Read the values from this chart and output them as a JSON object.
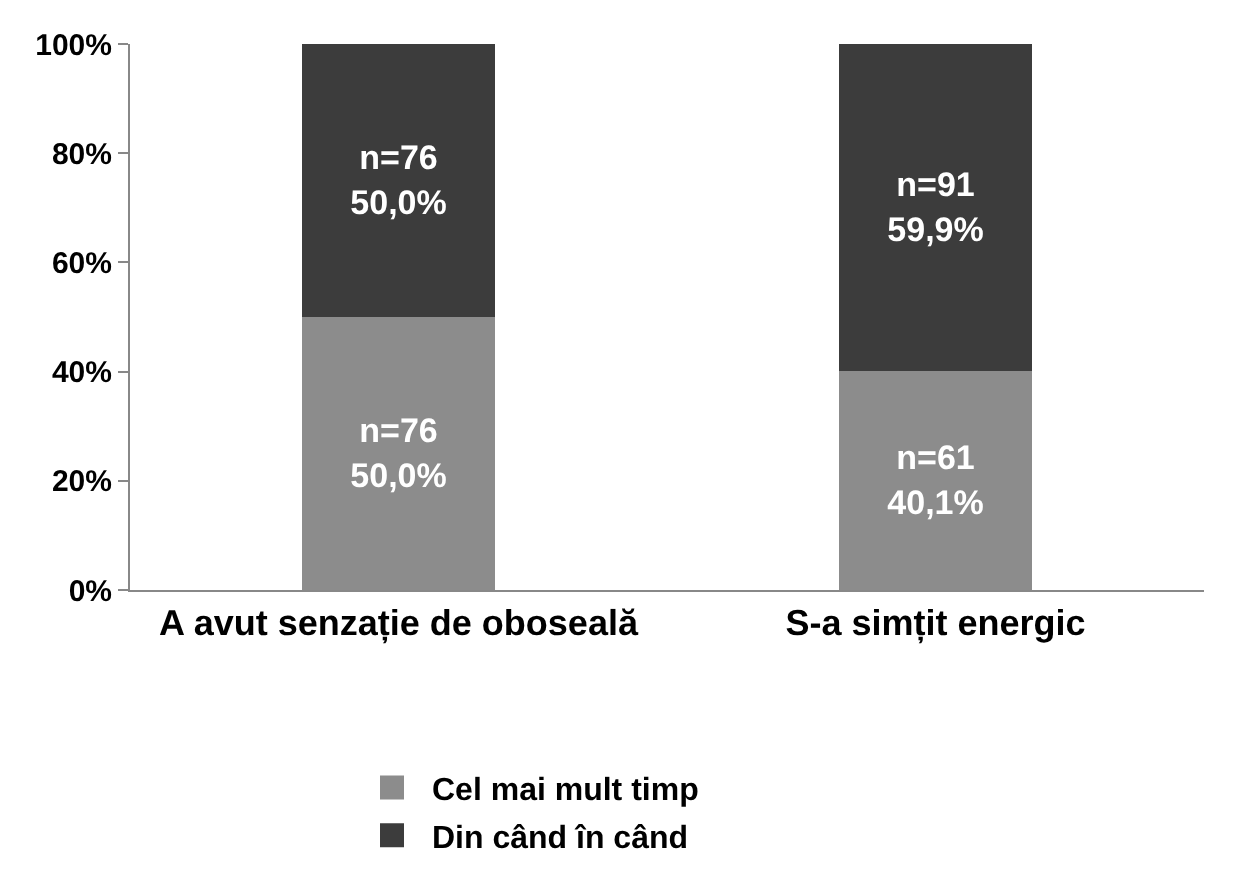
{
  "chart_data": {
    "type": "bar",
    "stacked": true,
    "categories": [
      "A avut senzație de oboseală",
      "S-a simțit energic"
    ],
    "series": [
      {
        "name": "Cel mai mult timp",
        "color": "#8c8c8c",
        "values": [
          50.0,
          40.1
        ],
        "value_labels": [
          "n=76\n50,0%",
          "n=61\n40,1%"
        ]
      },
      {
        "name": "Din când în când",
        "color": "#3c3c3c",
        "values": [
          50.0,
          59.9
        ],
        "value_labels": [
          "n=76\n50,0%",
          "n=91\n59,9%"
        ]
      }
    ],
    "ylim": [
      0,
      100
    ],
    "yticks": [
      {
        "value": 0,
        "label": "0%"
      },
      {
        "value": 20,
        "label": "20%"
      },
      {
        "value": 40,
        "label": "40%"
      },
      {
        "value": 60,
        "label": "60%"
      },
      {
        "value": 80,
        "label": "80%"
      },
      {
        "value": 100,
        "label": "100%"
      }
    ],
    "grid": false,
    "legend": "bottom"
  }
}
